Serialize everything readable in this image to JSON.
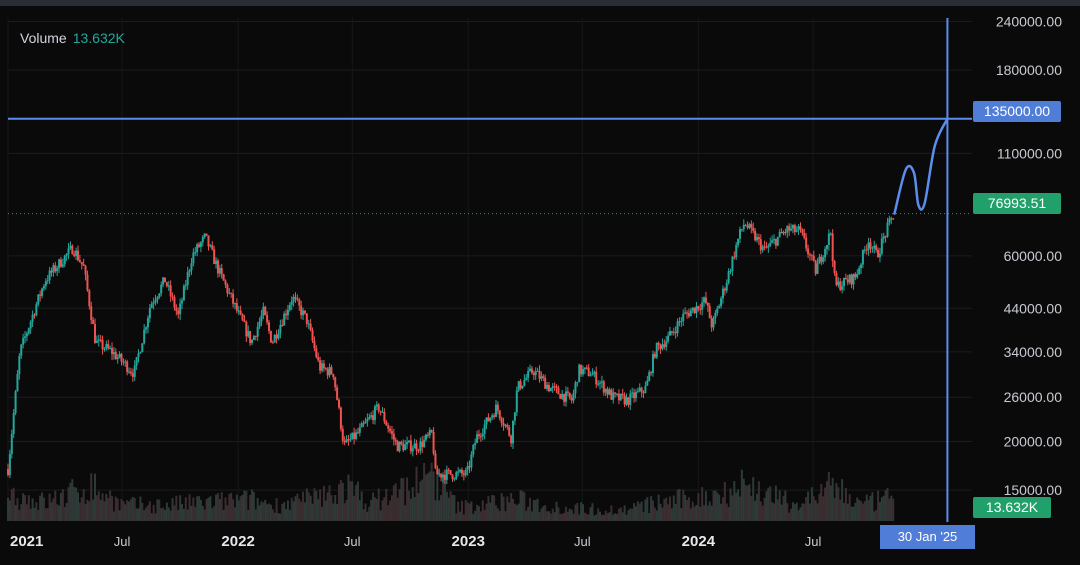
{
  "legend": {
    "label": "Volume",
    "value": "13.632K"
  },
  "markers": {
    "target_price": "135000.00",
    "last_price": "76993.51",
    "last_volume": "13.632K",
    "cursor_date": "30 Jan '25"
  },
  "colors": {
    "background": "#0a0a0b",
    "up": "#26a69a",
    "down": "#ef5350",
    "cursor": "#5b8def",
    "last_price_bg": "#22a06b",
    "volume": "#3a3d44"
  },
  "chart_data": {
    "type": "candlestick",
    "title": "",
    "y_scale": "log",
    "y_range": [
      12500,
      245000
    ],
    "y_tick_labels": [
      "240000.00",
      "180000.00",
      "110000.00",
      "60000.00",
      "44000.00",
      "34000.00",
      "26000.00",
      "20000.00",
      "15000.00"
    ],
    "y_ticks": [
      240000,
      180000,
      110000,
      60000,
      44000,
      34000,
      26000,
      20000,
      15000
    ],
    "x_range": [
      "2021-01-01",
      "2025-03-10"
    ],
    "x_tick_labels": [
      "2021",
      "Jul",
      "2022",
      "Jul",
      "2023",
      "Jul",
      "2024",
      "Jul"
    ],
    "x_ticks": [
      "2021-01-01",
      "2021-07-01",
      "2022-01-01",
      "2022-07-01",
      "2023-01-01",
      "2023-07-01",
      "2024-01-01",
      "2024-07-01"
    ],
    "grid": true,
    "price_path": [
      [
        "2021-01-01",
        17000
      ],
      [
        "2021-01-20",
        34000
      ],
      [
        "2021-02-15",
        45000
      ],
      [
        "2021-03-01",
        52000
      ],
      [
        "2021-04-14",
        63000
      ],
      [
        "2021-05-01",
        56000
      ],
      [
        "2021-05-20",
        36000
      ],
      [
        "2021-06-15",
        34000
      ],
      [
        "2021-07-20",
        30000
      ],
      [
        "2021-08-15",
        45000
      ],
      [
        "2021-09-07",
        52000
      ],
      [
        "2021-09-28",
        42000
      ],
      [
        "2021-10-20",
        60000
      ],
      [
        "2021-11-10",
        67000
      ],
      [
        "2021-12-01",
        55000
      ],
      [
        "2021-12-20",
        47000
      ],
      [
        "2022-01-22",
        36000
      ],
      [
        "2022-02-10",
        43000
      ],
      [
        "2022-02-24",
        36000
      ],
      [
        "2022-03-28",
        47000
      ],
      [
        "2022-04-20",
        41000
      ],
      [
        "2022-05-10",
        31000
      ],
      [
        "2022-06-01",
        30000
      ],
      [
        "2022-06-18",
        19500
      ],
      [
        "2022-07-10",
        21000
      ],
      [
        "2022-08-12",
        24500
      ],
      [
        "2022-09-10",
        19500
      ],
      [
        "2022-10-15",
        19500
      ],
      [
        "2022-11-05",
        21000
      ],
      [
        "2022-11-10",
        16500
      ],
      [
        "2022-12-30",
        16500
      ],
      [
        "2023-01-14",
        20500
      ],
      [
        "2023-02-15",
        24500
      ],
      [
        "2023-03-10",
        20500
      ],
      [
        "2023-03-20",
        27500
      ],
      [
        "2023-04-14",
        30500
      ],
      [
        "2023-05-10",
        27500
      ],
      [
        "2023-06-15",
        25500
      ],
      [
        "2023-06-25",
        30500
      ],
      [
        "2023-07-15",
        30000
      ],
      [
        "2023-08-18",
        26000
      ],
      [
        "2023-09-11",
        25500
      ],
      [
        "2023-10-10",
        27500
      ],
      [
        "2023-10-25",
        34500
      ],
      [
        "2023-11-15",
        37000
      ],
      [
        "2023-12-08",
        42000
      ],
      [
        "2024-01-12",
        46000
      ],
      [
        "2024-01-23",
        39500
      ],
      [
        "2024-02-15",
        52000
      ],
      [
        "2024-03-05",
        67000
      ],
      [
        "2024-03-14",
        73000
      ],
      [
        "2024-04-15",
        62000
      ],
      [
        "2024-05-20",
        70000
      ],
      [
        "2024-06-10",
        69500
      ],
      [
        "2024-07-05",
        55000
      ],
      [
        "2024-07-29",
        69000
      ],
      [
        "2024-08-05",
        50000
      ],
      [
        "2024-09-06",
        53000
      ],
      [
        "2024-09-27",
        66000
      ],
      [
        "2024-10-10",
        60000
      ],
      [
        "2024-10-29",
        72000
      ],
      [
        "2024-11-07",
        77000
      ]
    ],
    "projection_path": [
      [
        "2024-11-07",
        77000
      ],
      [
        "2024-11-25",
        100000
      ],
      [
        "2024-12-08",
        98000
      ],
      [
        "2024-12-15",
        81000
      ],
      [
        "2024-12-25",
        82000
      ],
      [
        "2025-01-10",
        115000
      ],
      [
        "2025-01-30",
        135000
      ]
    ],
    "volume_profile": [
      [
        "2021-01-01",
        5.0
      ],
      [
        "2021-03-01",
        3.5
      ],
      [
        "2021-05-15",
        6.5
      ],
      [
        "2021-07-01",
        3.0
      ],
      [
        "2021-09-01",
        3.0
      ],
      [
        "2021-11-15",
        3.5
      ],
      [
        "2022-01-20",
        4.0
      ],
      [
        "2022-03-01",
        3.0
      ],
      [
        "2022-05-15",
        4.5
      ],
      [
        "2022-06-18",
        6.5
      ],
      [
        "2022-08-01",
        3.5
      ],
      [
        "2022-11-09",
        8.5
      ],
      [
        "2022-12-15",
        2.5
      ],
      [
        "2023-03-15",
        4.0
      ],
      [
        "2023-06-01",
        2.5
      ],
      [
        "2023-09-01",
        2.0
      ],
      [
        "2023-11-01",
        3.5
      ],
      [
        "2024-01-15",
        4.5
      ],
      [
        "2024-03-12",
        7.0
      ],
      [
        "2024-06-01",
        3.0
      ],
      [
        "2024-08-05",
        6.5
      ],
      [
        "2024-09-15",
        3.0
      ],
      [
        "2024-11-07",
        4.5
      ]
    ],
    "volume_max": 10
  }
}
